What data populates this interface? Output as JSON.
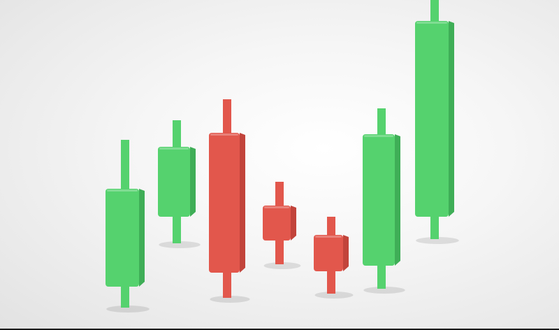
{
  "scene": {
    "subject": "3d-candlestick-icons",
    "background_color": "#f2f2f2",
    "colors": {
      "bullish": "#55d26e",
      "bullish_shade": "#3fae57",
      "bearish": "#e2574c",
      "bearish_shade": "#c2443b"
    }
  },
  "candles": [
    {
      "direction": "bullish",
      "open": 30,
      "close": 170,
      "high": 240,
      "low": 0
    },
    {
      "direction": "bullish",
      "open": 130,
      "close": 230,
      "high": 268,
      "low": 92
    },
    {
      "direction": "bearish",
      "open": 250,
      "close": 50,
      "high": 298,
      "low": 14
    },
    {
      "direction": "bearish",
      "open": 146,
      "close": 96,
      "high": 180,
      "low": 62
    },
    {
      "direction": "bearish",
      "open": 104,
      "close": 52,
      "high": 130,
      "low": 20
    },
    {
      "direction": "bullish",
      "open": 60,
      "close": 248,
      "high": 285,
      "low": 27
    },
    {
      "direction": "bullish",
      "open": 130,
      "close": 410,
      "high": 445,
      "low": 98
    }
  ]
}
